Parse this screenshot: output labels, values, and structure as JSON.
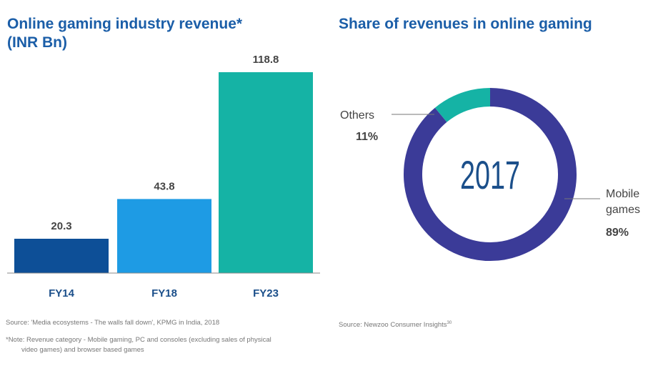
{
  "left_chart": {
    "title_line1": "Online gaming industry revenue*",
    "title_line2": "(INR Bn)"
  },
  "right_chart": {
    "title": "Share of revenues in online gaming",
    "center_label": "2017"
  },
  "colors": {
    "title": "#1b5ea8",
    "fy14": "#0d4f97",
    "fy18": "#1e9be4",
    "fy23": "#15b3a5",
    "mobile": "#3b3b98",
    "others": "#15b3a5"
  },
  "chart_data": [
    {
      "type": "bar",
      "title": "Online gaming industry revenue* (INR Bn)",
      "categories": [
        "FY14",
        "FY18",
        "FY23"
      ],
      "values": [
        20.3,
        43.8,
        118.8
      ],
      "value_labels": [
        "20.3",
        "43.8",
        "118.8"
      ],
      "ylim": [
        0,
        118.8
      ],
      "grid": false
    },
    {
      "type": "pie",
      "title": "Share of revenues in online gaming",
      "center_label": "2017",
      "slices": [
        {
          "label": "Mobile games",
          "value": 89,
          "pct_label": "89%"
        },
        {
          "label": "Others",
          "value": 11,
          "pct_label": "11%"
        }
      ]
    }
  ],
  "footnotes": {
    "left_source": "Source: 'Media ecosystems - The walls fall down', KPMG in India, 2018",
    "left_note_line1": "*Note: Revenue category - Mobile gaming, PC and consoles (excluding sales of physical",
    "left_note_line2": "video games) and browser based games",
    "right_source": "Source: Newzoo Consumer Insights",
    "right_source_sup": "30"
  }
}
